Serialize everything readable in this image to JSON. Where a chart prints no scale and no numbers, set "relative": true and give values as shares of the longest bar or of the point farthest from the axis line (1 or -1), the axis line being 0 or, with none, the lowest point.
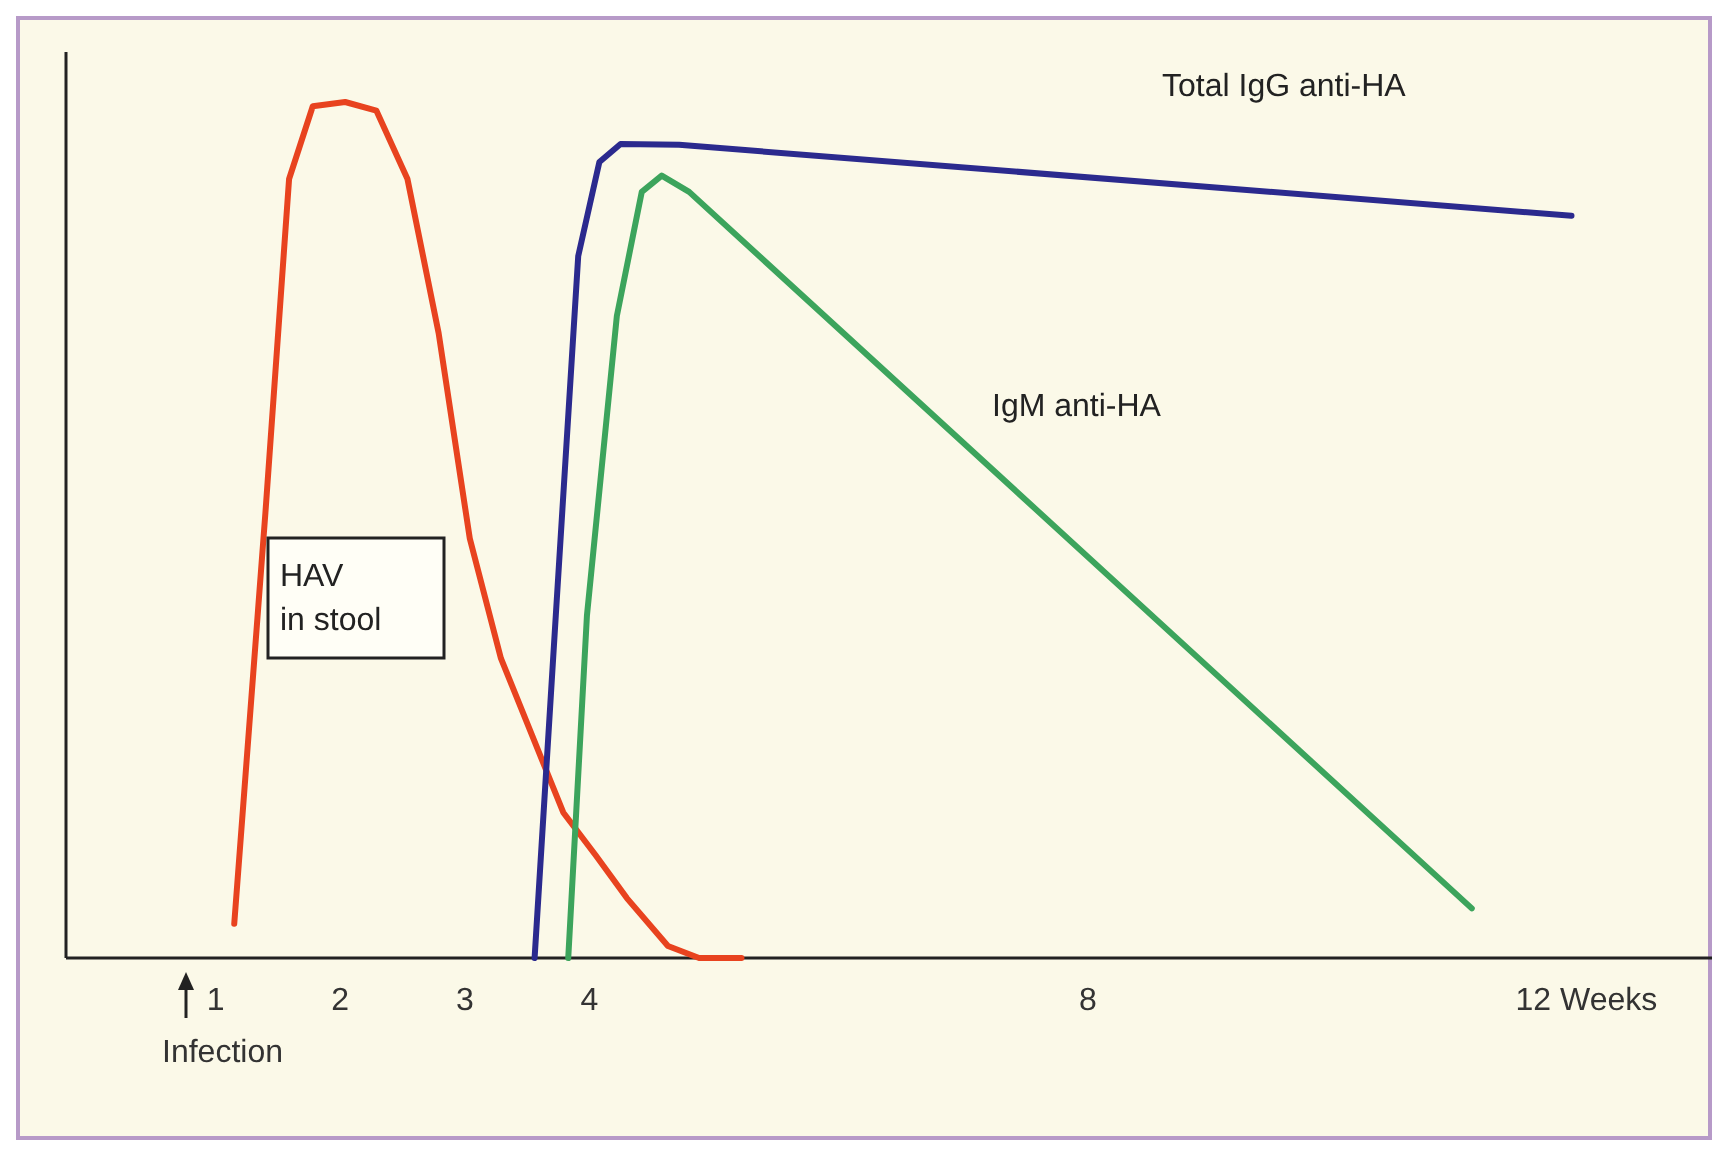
{
  "chart_data": {
    "type": "line",
    "relative": true,
    "tick_labels": "x",
    "line_style": "solid",
    "xlim": [
      -0.2,
      13.2
    ],
    "xticks": [
      1,
      2,
      3,
      4,
      8,
      {
        "value": 12,
        "label": "12 Weeks"
      }
    ],
    "annotations": [
      "Infection"
    ],
    "series": [
      {
        "name": "HAV in stool",
        "color": "#e8431f",
        "x": [
          1.15,
          1.4,
          1.59,
          1.78,
          2.04,
          2.29,
          2.54,
          2.79,
          3.04,
          3.29,
          3.54,
          3.79,
          4.05,
          4.3,
          4.63,
          4.88,
          5.22
        ],
        "values": [
          0.04,
          0.52,
          0.91,
          0.995,
          1,
          0.99,
          0.91,
          0.73,
          0.49,
          0.35,
          0.26,
          0.17,
          0.12,
          0.07,
          0.014,
          0,
          0
        ]
      },
      {
        "name": "Total IgG anti-HA",
        "color": "#2b2a8e",
        "x": [
          3.56,
          3.73,
          3.91,
          4.08,
          4.25,
          4.72,
          11.88
        ],
        "values": [
          0,
          0.4,
          0.82,
          0.93,
          0.951,
          0.95,
          0.867
        ]
      },
      {
        "name": "IgM anti-HA",
        "color": "#3ca45c",
        "x": [
          3.83,
          3.98,
          4.22,
          4.42,
          4.58,
          4.8,
          11.08
        ],
        "values": [
          0,
          0.4,
          0.75,
          0.895,
          0.914,
          0.895,
          0.058
        ]
      }
    ]
  }
}
